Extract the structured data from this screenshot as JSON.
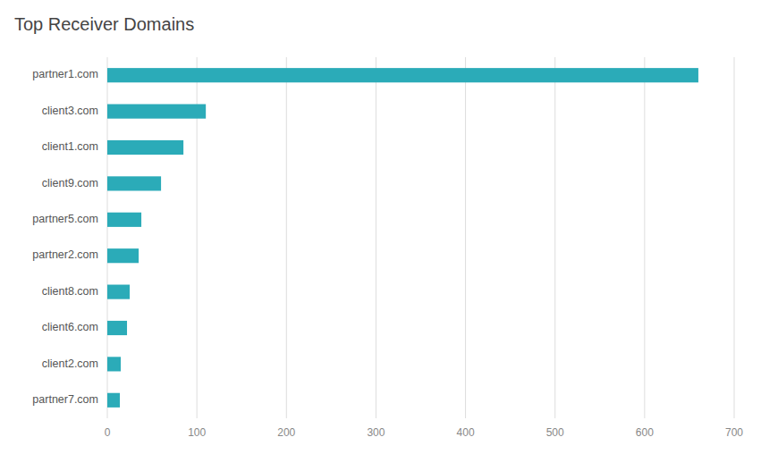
{
  "chart_data": {
    "type": "bar",
    "orientation": "horizontal",
    "title": "Top Receiver Domains",
    "categories": [
      "partner1.com",
      "client3.com",
      "client1.com",
      "client9.com",
      "partner5.com",
      "partner2.com",
      "client8.com",
      "client6.com",
      "client2.com",
      "partner7.com"
    ],
    "values": [
      660,
      110,
      85,
      60,
      38,
      35,
      25,
      22,
      15,
      14
    ],
    "color": "#2BABB8",
    "xlim": [
      0,
      700
    ],
    "xticks": [
      0,
      100,
      200,
      300,
      400,
      500,
      600,
      700
    ],
    "grid": true
  }
}
